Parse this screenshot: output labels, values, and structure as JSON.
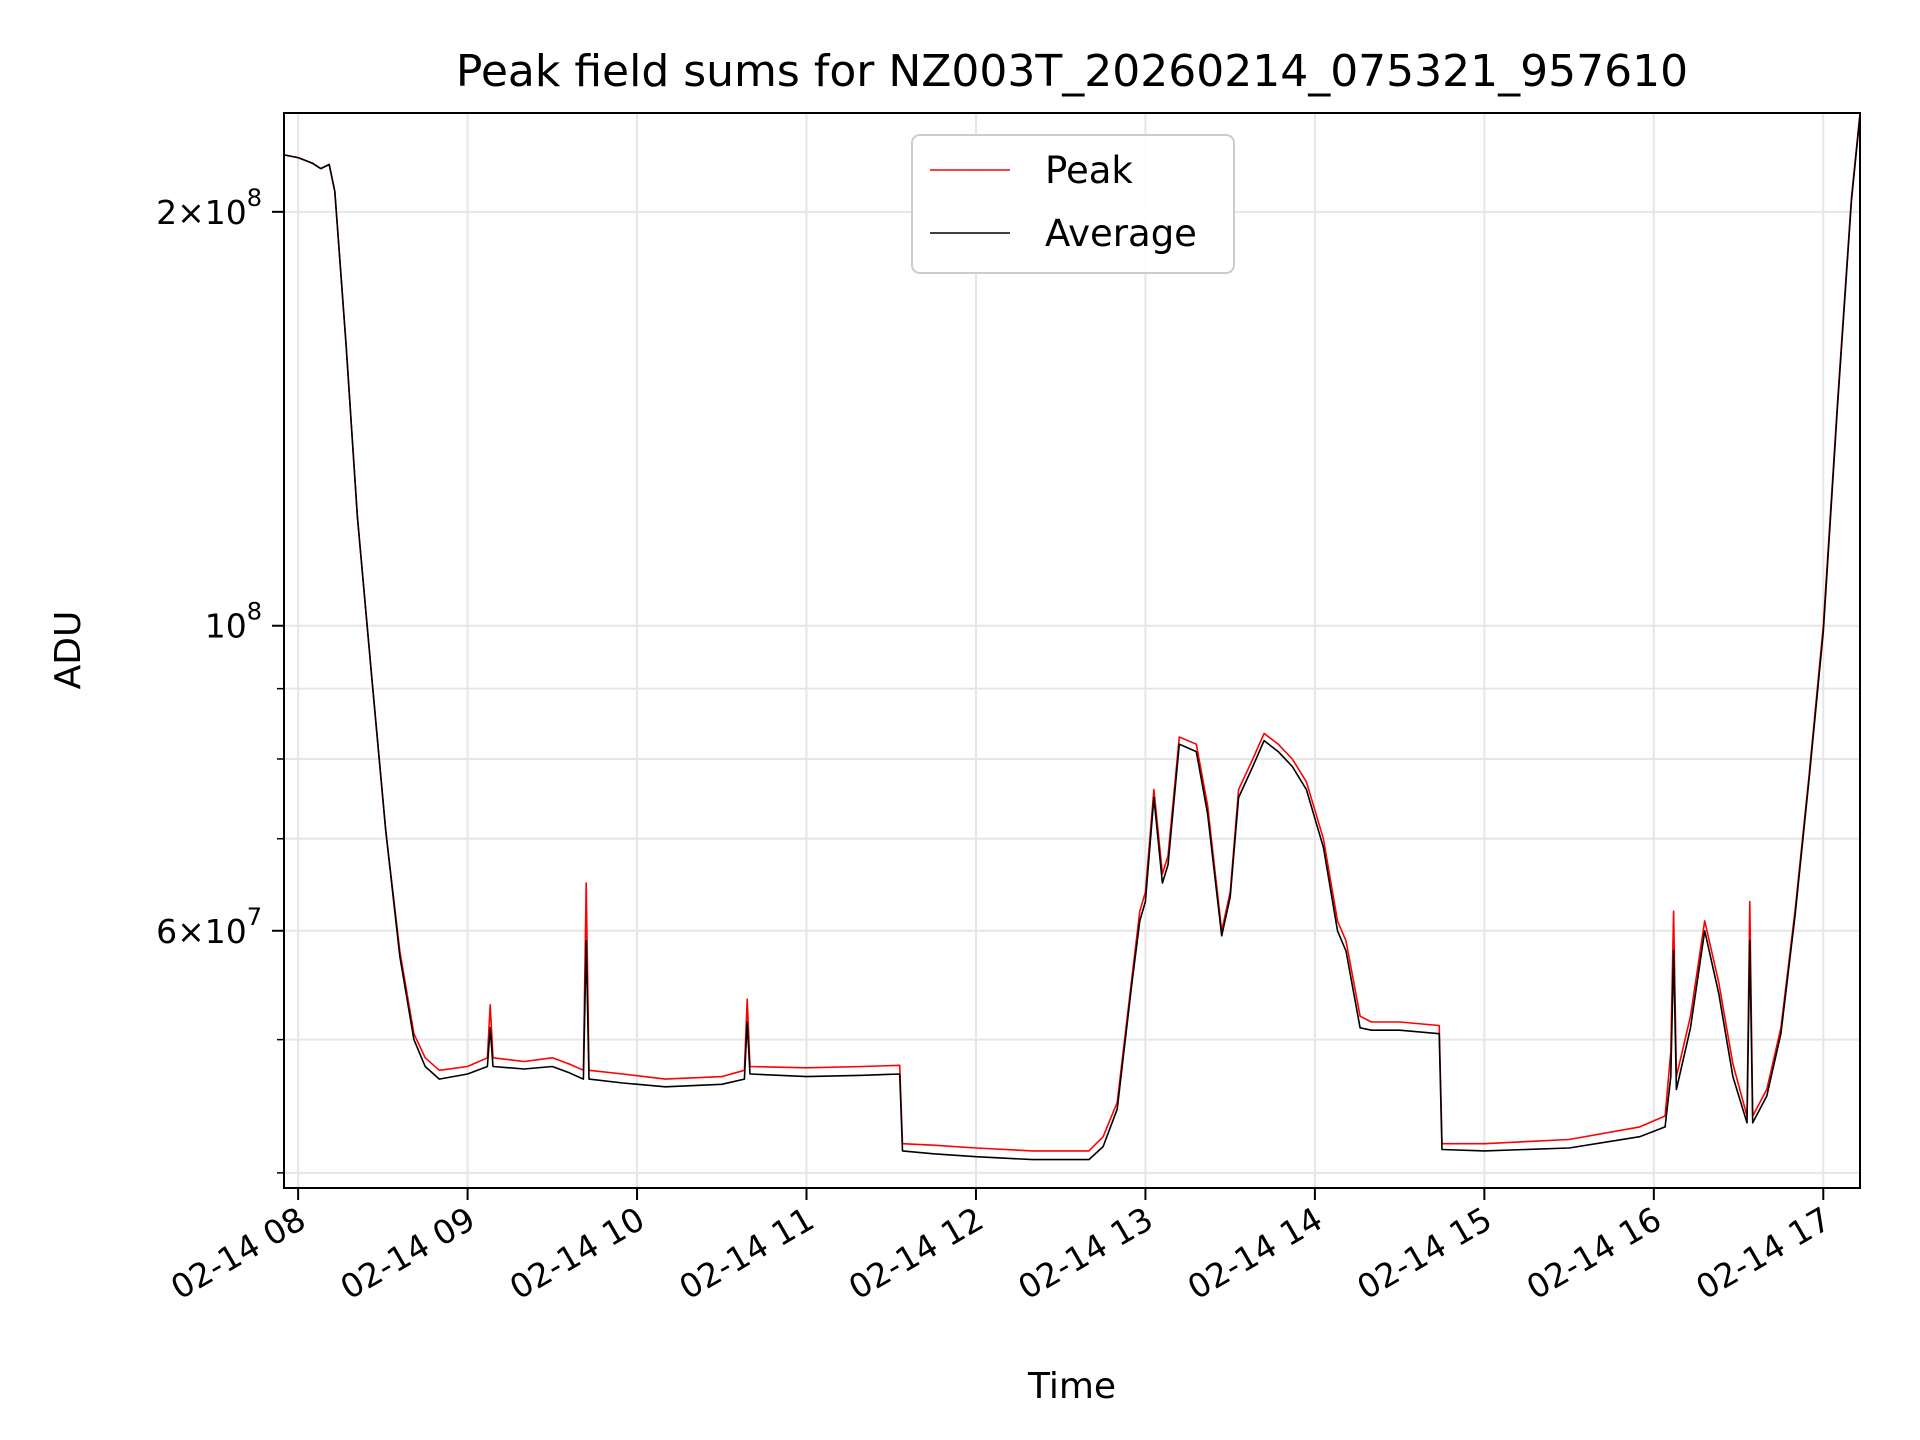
{
  "chart_data": {
    "type": "line",
    "title": "Peak field sums for NZ003T_20260214_075321_957610",
    "xlabel": "Time",
    "ylabel": "ADU",
    "y_scale": "log",
    "xlim": [
      "2026-02-14 07:55",
      "2026-02-14 17:13"
    ],
    "ylim": [
      39000000,
      236000000
    ],
    "grid": true,
    "legend_position": "top-center",
    "x_ticks": [
      {
        "value": "2026-02-14 08:00",
        "label": "02-14 08"
      },
      {
        "value": "2026-02-14 09:00",
        "label": "02-14 09"
      },
      {
        "value": "2026-02-14 10:00",
        "label": "02-14 10"
      },
      {
        "value": "2026-02-14 11:00",
        "label": "02-14 11"
      },
      {
        "value": "2026-02-14 12:00",
        "label": "02-14 12"
      },
      {
        "value": "2026-02-14 13:00",
        "label": "02-14 13"
      },
      {
        "value": "2026-02-14 14:00",
        "label": "02-14 14"
      },
      {
        "value": "2026-02-14 15:00",
        "label": "02-14 15"
      },
      {
        "value": "2026-02-14 16:00",
        "label": "02-14 16"
      },
      {
        "value": "2026-02-14 17:00",
        "label": "02-14 17"
      }
    ],
    "y_major_ticks": [
      {
        "value": 60000000,
        "mant": "6",
        "exp": "7"
      },
      {
        "value": 100000000,
        "mant": "",
        "exp": "8"
      },
      {
        "value": 200000000,
        "mant": "2",
        "exp": "8"
      }
    ],
    "y_minor_ticks": [
      40000000,
      50000000,
      70000000,
      80000000,
      90000000
    ],
    "series": [
      {
        "name": "Peak",
        "color": "#ff0000",
        "points": [
          [
            "2026-02-14 07:55",
            220000000
          ],
          [
            "2026-02-14 08:00",
            219000000
          ],
          [
            "2026-02-14 08:05",
            217000000
          ],
          [
            "2026-02-14 08:08",
            215000000
          ],
          [
            "2026-02-14 08:11",
            216500000
          ],
          [
            "2026-02-14 08:13",
            207000000
          ],
          [
            "2026-02-14 08:17",
            160000000
          ],
          [
            "2026-02-14 08:21",
            120000000
          ],
          [
            "2026-02-14 08:26",
            92000000
          ],
          [
            "2026-02-14 08:31",
            71000000
          ],
          [
            "2026-02-14 08:36",
            58000000
          ],
          [
            "2026-02-14 08:41",
            50500000
          ],
          [
            "2026-02-14 08:45",
            48500000
          ],
          [
            "2026-02-14 08:50",
            47500000
          ],
          [
            "2026-02-14 09:00",
            47800000
          ],
          [
            "2026-02-14 09:07",
            48500000
          ],
          [
            "2026-02-14 09:08",
            53000000
          ],
          [
            "2026-02-14 09:09",
            48500000
          ],
          [
            "2026-02-14 09:20",
            48200000
          ],
          [
            "2026-02-14 09:30",
            48500000
          ],
          [
            "2026-02-14 09:36",
            48000000
          ],
          [
            "2026-02-14 09:41",
            47500000
          ],
          [
            "2026-02-14 09:42",
            65000000
          ],
          [
            "2026-02-14 09:43",
            47500000
          ],
          [
            "2026-02-14 09:55",
            47200000
          ],
          [
            "2026-02-14 10:10",
            46800000
          ],
          [
            "2026-02-14 10:30",
            47000000
          ],
          [
            "2026-02-14 10:38",
            47500000
          ],
          [
            "2026-02-14 10:39",
            53500000
          ],
          [
            "2026-02-14 10:40",
            47800000
          ],
          [
            "2026-02-14 11:00",
            47700000
          ],
          [
            "2026-02-14 11:20",
            47800000
          ],
          [
            "2026-02-14 11:33",
            47900000
          ],
          [
            "2026-02-14 11:34",
            42000000
          ],
          [
            "2026-02-14 11:45",
            41900000
          ],
          [
            "2026-02-14 12:00",
            41700000
          ],
          [
            "2026-02-14 12:20",
            41500000
          ],
          [
            "2026-02-14 12:40",
            41500000
          ],
          [
            "2026-02-14 12:45",
            42500000
          ],
          [
            "2026-02-14 12:50",
            45000000
          ],
          [
            "2026-02-14 12:55",
            55000000
          ],
          [
            "2026-02-14 12:58",
            62000000
          ],
          [
            "2026-02-14 13:00",
            64000000
          ],
          [
            "2026-02-14 13:03",
            76000000
          ],
          [
            "2026-02-14 13:06",
            66000000
          ],
          [
            "2026-02-14 13:08",
            68000000
          ],
          [
            "2026-02-14 13:12",
            83000000
          ],
          [
            "2026-02-14 13:18",
            82000000
          ],
          [
            "2026-02-14 13:22",
            74000000
          ],
          [
            "2026-02-14 13:27",
            60000000
          ],
          [
            "2026-02-14 13:30",
            64000000
          ],
          [
            "2026-02-14 13:33",
            76000000
          ],
          [
            "2026-02-14 13:38",
            80000000
          ],
          [
            "2026-02-14 13:42",
            83500000
          ],
          [
            "2026-02-14 13:47",
            82000000
          ],
          [
            "2026-02-14 13:52",
            80000000
          ],
          [
            "2026-02-14 13:57",
            77000000
          ],
          [
            "2026-02-14 14:03",
            70000000
          ],
          [
            "2026-02-14 14:08",
            61000000
          ],
          [
            "2026-02-14 14:11",
            59000000
          ],
          [
            "2026-02-14 14:16",
            52000000
          ],
          [
            "2026-02-14 14:20",
            51500000
          ],
          [
            "2026-02-14 14:30",
            51500000
          ],
          [
            "2026-02-14 14:44",
            51200000
          ],
          [
            "2026-02-14 14:45",
            42000000
          ],
          [
            "2026-02-14 15:00",
            42000000
          ],
          [
            "2026-02-14 15:30",
            42300000
          ],
          [
            "2026-02-14 15:55",
            43200000
          ],
          [
            "2026-02-14 16:04",
            44000000
          ],
          [
            "2026-02-14 16:06",
            49000000
          ],
          [
            "2026-02-14 16:07",
            62000000
          ],
          [
            "2026-02-14 16:08",
            47000000
          ],
          [
            "2026-02-14 16:13",
            52000000
          ],
          [
            "2026-02-14 16:18",
            61000000
          ],
          [
            "2026-02-14 16:23",
            55000000
          ],
          [
            "2026-02-14 16:28",
            48000000
          ],
          [
            "2026-02-14 16:33",
            44000000
          ],
          [
            "2026-02-14 16:34",
            63000000
          ],
          [
            "2026-02-14 16:35",
            44000000
          ],
          [
            "2026-02-14 16:40",
            46000000
          ],
          [
            "2026-02-14 16:45",
            51000000
          ],
          [
            "2026-02-14 16:50",
            62000000
          ],
          [
            "2026-02-14 16:55",
            78000000
          ],
          [
            "2026-02-14 17:00",
            100000000
          ],
          [
            "2026-02-14 17:05",
            145000000
          ],
          [
            "2026-02-14 17:10",
            205000000
          ],
          [
            "2026-02-14 17:13",
            236000000
          ]
        ]
      },
      {
        "name": "Average",
        "color": "#000000",
        "points": [
          [
            "2026-02-14 07:55",
            220000000
          ],
          [
            "2026-02-14 08:00",
            219000000
          ],
          [
            "2026-02-14 08:05",
            217000000
          ],
          [
            "2026-02-14 08:08",
            215000000
          ],
          [
            "2026-02-14 08:11",
            216500000
          ],
          [
            "2026-02-14 08:13",
            207000000
          ],
          [
            "2026-02-14 08:17",
            160000000
          ],
          [
            "2026-02-14 08:21",
            120000000
          ],
          [
            "2026-02-14 08:26",
            92000000
          ],
          [
            "2026-02-14 08:31",
            71000000
          ],
          [
            "2026-02-14 08:36",
            57500000
          ],
          [
            "2026-02-14 08:41",
            50000000
          ],
          [
            "2026-02-14 08:45",
            47800000
          ],
          [
            "2026-02-14 08:50",
            46800000
          ],
          [
            "2026-02-14 09:00",
            47200000
          ],
          [
            "2026-02-14 09:07",
            47800000
          ],
          [
            "2026-02-14 09:08",
            51000000
          ],
          [
            "2026-02-14 09:09",
            47800000
          ],
          [
            "2026-02-14 09:20",
            47600000
          ],
          [
            "2026-02-14 09:30",
            47800000
          ],
          [
            "2026-02-14 09:36",
            47300000
          ],
          [
            "2026-02-14 09:41",
            46800000
          ],
          [
            "2026-02-14 09:42",
            59000000
          ],
          [
            "2026-02-14 09:43",
            46800000
          ],
          [
            "2026-02-14 09:55",
            46500000
          ],
          [
            "2026-02-14 10:10",
            46200000
          ],
          [
            "2026-02-14 10:30",
            46400000
          ],
          [
            "2026-02-14 10:38",
            46800000
          ],
          [
            "2026-02-14 10:39",
            51500000
          ],
          [
            "2026-02-14 10:40",
            47200000
          ],
          [
            "2026-02-14 11:00",
            47000000
          ],
          [
            "2026-02-14 11:20",
            47100000
          ],
          [
            "2026-02-14 11:33",
            47200000
          ],
          [
            "2026-02-14 11:34",
            41500000
          ],
          [
            "2026-02-14 11:45",
            41300000
          ],
          [
            "2026-02-14 12:00",
            41100000
          ],
          [
            "2026-02-14 12:20",
            40900000
          ],
          [
            "2026-02-14 12:40",
            40900000
          ],
          [
            "2026-02-14 12:45",
            41800000
          ],
          [
            "2026-02-14 12:50",
            44500000
          ],
          [
            "2026-02-14 12:55",
            54500000
          ],
          [
            "2026-02-14 12:58",
            61000000
          ],
          [
            "2026-02-14 13:00",
            63000000
          ],
          [
            "2026-02-14 13:03",
            75000000
          ],
          [
            "2026-02-14 13:06",
            65000000
          ],
          [
            "2026-02-14 13:08",
            67000000
          ],
          [
            "2026-02-14 13:12",
            82000000
          ],
          [
            "2026-02-14 13:18",
            81000000
          ],
          [
            "2026-02-14 13:22",
            73000000
          ],
          [
            "2026-02-14 13:27",
            59500000
          ],
          [
            "2026-02-14 13:30",
            63500000
          ],
          [
            "2026-02-14 13:33",
            75000000
          ],
          [
            "2026-02-14 13:38",
            79000000
          ],
          [
            "2026-02-14 13:42",
            82500000
          ],
          [
            "2026-02-14 13:47",
            81000000
          ],
          [
            "2026-02-14 13:52",
            79000000
          ],
          [
            "2026-02-14 13:57",
            76000000
          ],
          [
            "2026-02-14 14:03",
            69000000
          ],
          [
            "2026-02-14 14:08",
            60000000
          ],
          [
            "2026-02-14 14:11",
            58000000
          ],
          [
            "2026-02-14 14:16",
            51000000
          ],
          [
            "2026-02-14 14:20",
            50800000
          ],
          [
            "2026-02-14 14:30",
            50800000
          ],
          [
            "2026-02-14 14:44",
            50500000
          ],
          [
            "2026-02-14 14:45",
            41600000
          ],
          [
            "2026-02-14 15:00",
            41500000
          ],
          [
            "2026-02-14 15:30",
            41700000
          ],
          [
            "2026-02-14 15:55",
            42500000
          ],
          [
            "2026-02-14 16:04",
            43200000
          ],
          [
            "2026-02-14 16:06",
            47000000
          ],
          [
            "2026-02-14 16:07",
            58000000
          ],
          [
            "2026-02-14 16:08",
            46000000
          ],
          [
            "2026-02-14 16:13",
            51000000
          ],
          [
            "2026-02-14 16:18",
            60000000
          ],
          [
            "2026-02-14 16:23",
            54000000
          ],
          [
            "2026-02-14 16:28",
            47000000
          ],
          [
            "2026-02-14 16:33",
            43500000
          ],
          [
            "2026-02-14 16:34",
            59000000
          ],
          [
            "2026-02-14 16:35",
            43500000
          ],
          [
            "2026-02-14 16:40",
            45500000
          ],
          [
            "2026-02-14 16:45",
            50500000
          ],
          [
            "2026-02-14 16:50",
            61500000
          ],
          [
            "2026-02-14 16:55",
            77500000
          ],
          [
            "2026-02-14 17:00",
            99000000
          ],
          [
            "2026-02-14 17:05",
            144000000
          ],
          [
            "2026-02-14 17:10",
            204000000
          ],
          [
            "2026-02-14 17:13",
            235000000
          ]
        ]
      }
    ]
  }
}
